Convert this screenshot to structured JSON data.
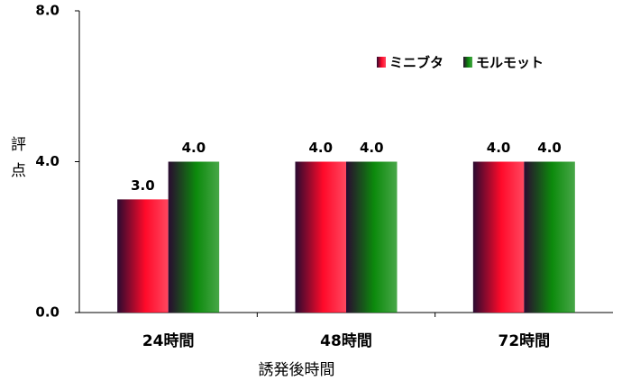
{
  "chart_data": {
    "type": "bar",
    "categories": [
      "24時間",
      "48時間",
      "72時間"
    ],
    "series": [
      {
        "name": "ミニブタ",
        "color": "#ff0a2a",
        "values": [
          3.0,
          4.0,
          4.0
        ],
        "value_labels": [
          "3.0",
          "4.0",
          "4.0"
        ]
      },
      {
        "name": "モルモット",
        "color": "#0c8a0c",
        "values": [
          4.0,
          4.0,
          4.0
        ],
        "value_labels": [
          "4.0",
          "4.0",
          "4.0"
        ]
      }
    ],
    "xlabel": "誘発後時間",
    "ylabel": "評点",
    "ylim": [
      0,
      8
    ],
    "yticks": [
      {
        "value": 0,
        "label": "0.0"
      },
      {
        "value": 4,
        "label": "4.0"
      },
      {
        "value": 8,
        "label": "8.0"
      }
    ],
    "grid": false,
    "legend": "upper-right"
  }
}
